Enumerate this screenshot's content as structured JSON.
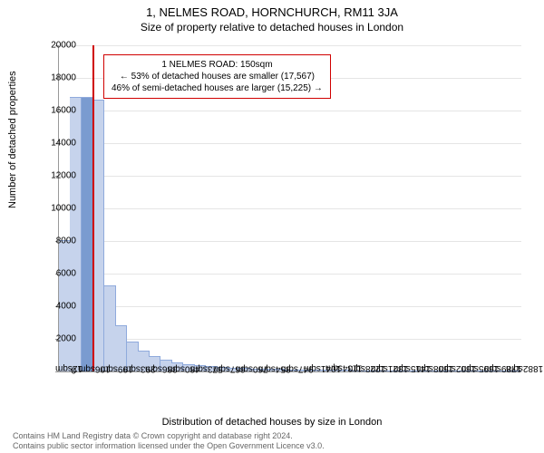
{
  "title": "1, NELMES ROAD, HORNCHURCH, RM11 3JA",
  "subtitle": "Size of property relative to detached houses in London",
  "chart": {
    "type": "histogram",
    "ylabel": "Number of detached properties",
    "xlabel": "Distribution of detached houses by size in London",
    "ylim": [
      0,
      20000
    ],
    "ytick_step": 2000,
    "yticks": [
      0,
      2000,
      4000,
      6000,
      8000,
      10000,
      12000,
      14000,
      16000,
      18000,
      20000
    ],
    "xtick_labels": [
      "12sqm",
      "106sqm",
      "199sqm",
      "293sqm",
      "386sqm",
      "480sqm",
      "573sqm",
      "667sqm",
      "760sqm",
      "854sqm",
      "947sqm",
      "1041sqm",
      "1134sqm",
      "1228sqm",
      "1321sqm",
      "1415sqm",
      "1508sqm",
      "1602sqm",
      "1695sqm",
      "1789sqm",
      "1882sqm"
    ],
    "bar_color": "#c6d3ec",
    "bar_border": "#8faadc",
    "highlight_bar_color": "#7a9bd0",
    "grid_color": "#e5e5e5",
    "background_color": "#ffffff",
    "reference_line_color": "#d00000",
    "reference_line_x": 150,
    "x_range": [
      12,
      1930
    ],
    "bars": [
      {
        "x": 12,
        "w": 47,
        "v": 8000,
        "hl": false
      },
      {
        "x": 59,
        "w": 47,
        "v": 16800,
        "hl": false
      },
      {
        "x": 106,
        "w": 47,
        "v": 16800,
        "hl": true
      },
      {
        "x": 153,
        "w": 47,
        "v": 16600,
        "hl": false
      },
      {
        "x": 199,
        "w": 47,
        "v": 5200,
        "hl": false
      },
      {
        "x": 246,
        "w": 47,
        "v": 2800,
        "hl": false
      },
      {
        "x": 293,
        "w": 47,
        "v": 1800,
        "hl": false
      },
      {
        "x": 340,
        "w": 47,
        "v": 1200,
        "hl": false
      },
      {
        "x": 386,
        "w": 47,
        "v": 900,
        "hl": false
      },
      {
        "x": 433,
        "w": 47,
        "v": 650,
        "hl": false
      },
      {
        "x": 480,
        "w": 47,
        "v": 500,
        "hl": false
      },
      {
        "x": 527,
        "w": 47,
        "v": 400,
        "hl": false
      },
      {
        "x": 573,
        "w": 47,
        "v": 320,
        "hl": false
      },
      {
        "x": 620,
        "w": 47,
        "v": 260,
        "hl": false
      },
      {
        "x": 667,
        "w": 47,
        "v": 210,
        "hl": false
      },
      {
        "x": 714,
        "w": 47,
        "v": 170,
        "hl": false
      },
      {
        "x": 760,
        "w": 47,
        "v": 140,
        "hl": false
      },
      {
        "x": 807,
        "w": 47,
        "v": 120,
        "hl": false
      },
      {
        "x": 854,
        "w": 47,
        "v": 100,
        "hl": false
      },
      {
        "x": 901,
        "w": 47,
        "v": 85,
        "hl": false
      },
      {
        "x": 947,
        "w": 47,
        "v": 72,
        "hl": false
      },
      {
        "x": 994,
        "w": 47,
        "v": 60,
        "hl": false
      },
      {
        "x": 1041,
        "w": 47,
        "v": 50,
        "hl": false
      },
      {
        "x": 1088,
        "w": 47,
        "v": 42,
        "hl": false
      },
      {
        "x": 1134,
        "w": 47,
        "v": 35,
        "hl": false
      },
      {
        "x": 1181,
        "w": 47,
        "v": 30,
        "hl": false
      },
      {
        "x": 1228,
        "w": 47,
        "v": 25,
        "hl": false
      },
      {
        "x": 1275,
        "w": 47,
        "v": 20,
        "hl": false
      },
      {
        "x": 1321,
        "w": 47,
        "v": 17,
        "hl": false
      },
      {
        "x": 1368,
        "w": 47,
        "v": 14,
        "hl": false
      },
      {
        "x": 1415,
        "w": 47,
        "v": 12,
        "hl": false
      },
      {
        "x": 1462,
        "w": 47,
        "v": 10,
        "hl": false
      },
      {
        "x": 1508,
        "w": 47,
        "v": 8,
        "hl": false
      },
      {
        "x": 1555,
        "w": 47,
        "v": 7,
        "hl": false
      },
      {
        "x": 1602,
        "w": 47,
        "v": 6,
        "hl": false
      },
      {
        "x": 1649,
        "w": 47,
        "v": 5,
        "hl": false
      },
      {
        "x": 1695,
        "w": 47,
        "v": 4,
        "hl": false
      },
      {
        "x": 1742,
        "w": 47,
        "v": 3,
        "hl": false
      },
      {
        "x": 1789,
        "w": 47,
        "v": 3,
        "hl": false
      },
      {
        "x": 1836,
        "w": 47,
        "v": 2,
        "hl": false
      },
      {
        "x": 1882,
        "w": 47,
        "v": 2,
        "hl": false
      }
    ]
  },
  "annotation": {
    "line1": "1 NELMES ROAD: 150sqm",
    "line2": "← 53% of detached houses are smaller (17,567)",
    "line3": "46% of semi-detached houses are larger (15,225) →",
    "border_color": "#d00000"
  },
  "footer": {
    "line1": "Contains HM Land Registry data © Crown copyright and database right 2024.",
    "line2": "Contains public sector information licensed under the Open Government Licence v3.0."
  }
}
